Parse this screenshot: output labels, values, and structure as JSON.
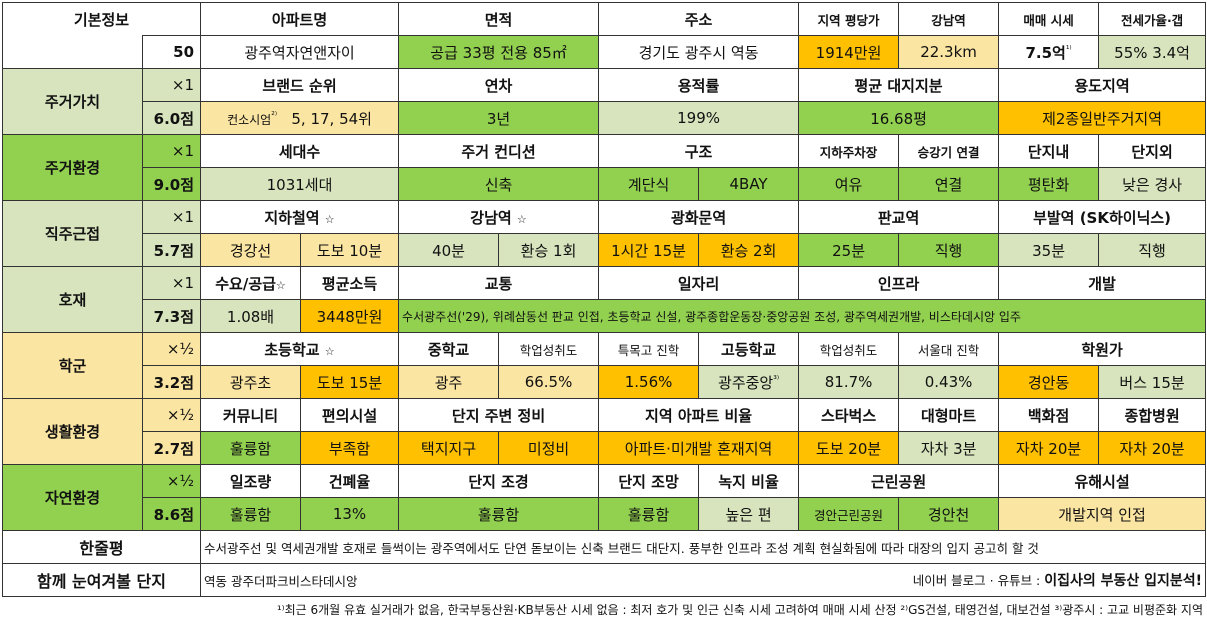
{
  "basic": {
    "label": "기본정보",
    "score": "50",
    "headers": {
      "apt": "아파트명",
      "area": "면적",
      "addr": "주소",
      "price_per_py": "지역 평당가",
      "gangnam": "강남역",
      "sale": "매매 시세",
      "jeonse": "전세가율·갭"
    },
    "apt_name": "광주역자연앤자이",
    "area": "공급 33평   전용 85㎡",
    "address": "경기도 광주시 역동",
    "price_per_py": "1914만원",
    "gangnam_dist": "22.3km",
    "sale_price": "7.5억",
    "sale_sup": "¹⁾",
    "jeonse_rate": "55%   3.4억"
  },
  "sections": {
    "s1": {
      "label": "주거가치",
      "mul": "×1",
      "score": "6.0점"
    },
    "s2": {
      "label": "주거환경",
      "mul": "×1",
      "score": "9.0점"
    },
    "s3": {
      "label": "직주근접",
      "mul": "×1",
      "score": "5.7점"
    },
    "s4": {
      "label": "호재",
      "mul": "×1",
      "score": "7.3점"
    },
    "s5": {
      "label": "학군",
      "mul": "×½",
      "score": "3.2점"
    },
    "s6": {
      "label": "생활환경",
      "mul": "×½",
      "score": "2.7점"
    },
    "s7": {
      "label": "자연환경",
      "mul": "×½",
      "score": "8.6점"
    }
  },
  "value": {
    "headers": [
      "브랜드 순위",
      "연차",
      "용적률",
      "평균 대지지분",
      "용도지역"
    ],
    "brand_a": "컨소시엄",
    "brand_sup": "²⁾",
    "brand_b": "5, 17, 54위",
    "age": "3년",
    "far": "199%",
    "land": "16.68평",
    "zone": "제2종일반주거지역"
  },
  "env": {
    "headers": [
      "세대수",
      "주거 컨디션",
      "구조",
      "지하주차장",
      "승강기 연결",
      "단지내",
      "단지외"
    ],
    "households": "1031세대",
    "condition": "신축",
    "stair": "계단식",
    "bay": "4BAY",
    "parking": "여유",
    "elevator": "연결",
    "inside": "평탄화",
    "outside": "낮은 경사"
  },
  "commute": {
    "headers": [
      "지하철역",
      "강남역",
      "광화문역",
      "판교역",
      "부발역 (SK하이닉스)"
    ],
    "star": "☆",
    "station": "경강선",
    "walk": "도보 10분",
    "gangnam_t": "40분",
    "gangnam_tr": "환승 1회",
    "gwang_t": "1시간 15분",
    "gwang_tr": "환승 2회",
    "pangyo_t": "25분",
    "pangyo_tr": "직행",
    "bubal_t": "35분",
    "bubal_tr": "직행"
  },
  "news": {
    "headers": [
      "수요/공급",
      "평균소득",
      "교통",
      "일자리",
      "인프라",
      "개발"
    ],
    "supply": "1.08배",
    "income": "3448만원",
    "detail": "수서광주선('29), 위례삼동선    판교 인접, 초등학교 신설, 광주종합운동장·중앙공원 조성, 광주역세권개발, 비스타데시앙 입주"
  },
  "school": {
    "headers": [
      "초등학교",
      "중학교",
      "학업성취도",
      "특목고 진학",
      "고등학교",
      "학업성취도",
      "서울대 진학",
      "학원가"
    ],
    "elem": "광주초",
    "elem_walk": "도보 15분",
    "middle": "광주",
    "mid_score": "66.5%",
    "special": "1.56%",
    "high": "광주중앙",
    "high_sup": "³⁾",
    "high_score": "81.7%",
    "snu": "0.43%",
    "academy": "경안동",
    "academy_bus": "버스 15분"
  },
  "life": {
    "headers": [
      "커뮤니티",
      "편의시설",
      "단지 주변 정비",
      "지역 아파트 비율",
      "스타벅스",
      "대형마트",
      "백화점",
      "종합병원"
    ],
    "community": "훌륭함",
    "convenience": "부족함",
    "surround_a": "택지지구",
    "surround_b": "미정비",
    "ratio": "아파트·미개발 혼재지역",
    "starbucks": "도보 20분",
    "mart": "자차 3분",
    "dept": "자차 20분",
    "hospital": "자차 20분"
  },
  "nature": {
    "headers": [
      "일조량",
      "건폐율",
      "단지 조경",
      "단지 조망",
      "녹지 비율",
      "근린공원",
      "유해시설"
    ],
    "sun": "훌륭함",
    "bcr": "13%",
    "landscape": "훌륭함",
    "view": "훌륭함",
    "green": "높은 편",
    "park_a": "경안근린공원",
    "park_b": "경안천",
    "hazard": "개발지역 인접"
  },
  "summary": {
    "label": "한줄평",
    "text": "수서광주선 및 역세권개발 호재로 들썩이는 광주역에서도 단연 돋보이는 신축 브랜드 대단지. 풍부한 인프라 조성 계획 현실화됨에 따라 대장의 입지 공고히 할 것"
  },
  "together": {
    "label": "함께 눈여겨볼 단지",
    "value": "역동 광주더파크비스타데시앙",
    "credit_a": "네이버 블로그 · 유튜브 : ",
    "credit_b": "이집사의 부동산 입지분석!"
  },
  "footnote": "¹⁾최근 6개월 유효 실거래가 없음, 한국부동산원·KB부동산 시세 없음 : 최저 호가 및 인근 신축 시세 고려하여 매매 시세 산정 ²⁾GS건설, 태영건설, 대보건설 ³⁾광주시 : 고교 비평준화 지역",
  "colors": {
    "light_green": "#d7e4bd",
    "green": "#92d050",
    "light_yellow": "#fbe5a2",
    "orange": "#ffc000"
  }
}
